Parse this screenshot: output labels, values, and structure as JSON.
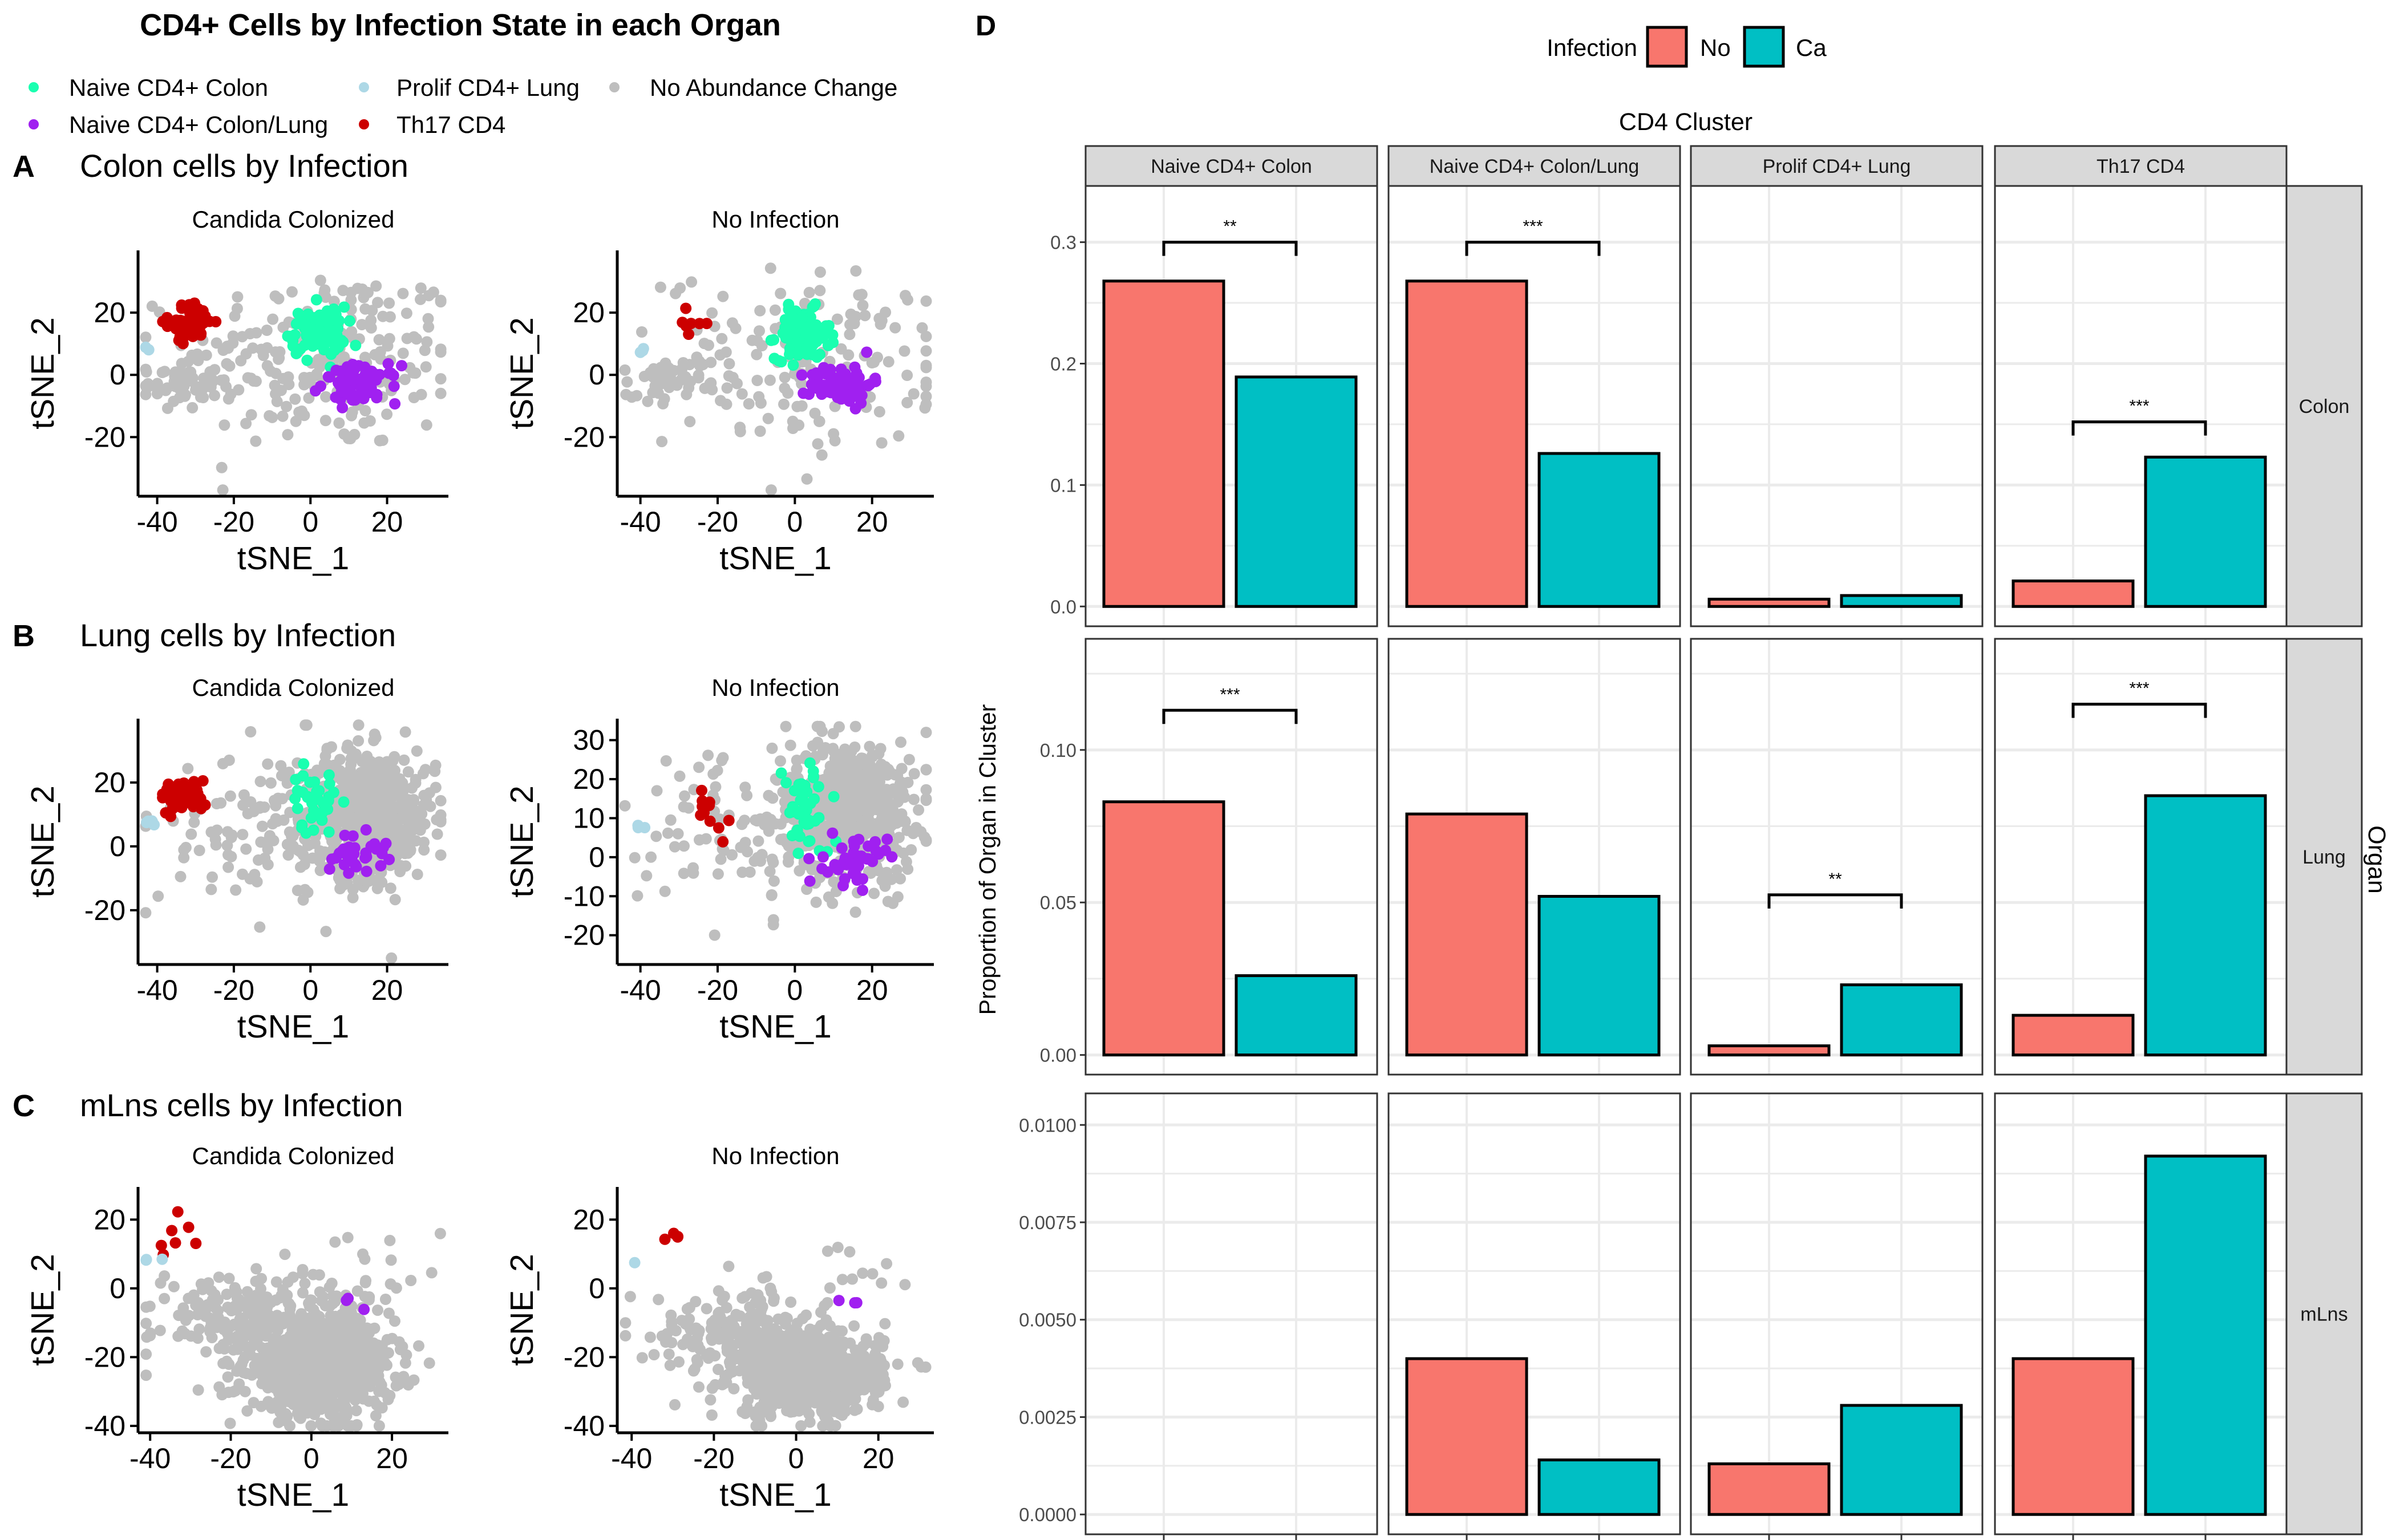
{
  "title": "CD4+ Cells by Infection State in each Organ",
  "legend": {
    "items": [
      {
        "label": "Naive CD4+ Colon",
        "color": "#1AFFB0"
      },
      {
        "label": "Naive CD4+ Colon/Lung",
        "color": "#A020F0"
      },
      {
        "label": "Prolif CD4+ Lung",
        "color": "#ADD8E6"
      },
      {
        "label": "Th17 CD4",
        "color": "#CC0000"
      },
      {
        "label": "No Abundance Change",
        "color": "#BEBEBE"
      }
    ]
  },
  "sections": [
    {
      "letter": "A",
      "heading": "Colon cells by Infection"
    },
    {
      "letter": "B",
      "heading": "Lung cells by Infection"
    },
    {
      "letter": "C",
      "heading": "mLns cells by Infection"
    }
  ],
  "chart_data": [
    {
      "type": "scatter",
      "panel": "A-left",
      "title": "Candida Colonized",
      "xlabel": "tSNE_1",
      "ylabel": "tSNE_2",
      "xticks": [
        "-40",
        "-20",
        "0",
        "20"
      ],
      "yticks": [
        "20",
        "0",
        "-20"
      ],
      "xlim": [
        -45,
        36
      ],
      "ylim": [
        -39,
        40
      ],
      "clusters": [
        {
          "cat": 4,
          "cx": 5,
          "cy": 5,
          "sx": 18,
          "sy": 15,
          "n": 220
        },
        {
          "cat": 4,
          "cx": -34,
          "cy": -3,
          "sx": 5,
          "sy": 4,
          "n": 60
        },
        {
          "cat": 3,
          "cx": -31,
          "cy": 17,
          "sx": 3,
          "sy": 3,
          "n": 55
        },
        {
          "cat": 2,
          "cx": -42,
          "cy": 8,
          "sx": 1,
          "sy": 0.5,
          "n": 2
        },
        {
          "cat": 0,
          "cx": 2,
          "cy": 14,
          "sx": 3.5,
          "sy": 4,
          "n": 90
        },
        {
          "cat": 1,
          "cx": 13,
          "cy": -3,
          "sx": 5,
          "sy": 3,
          "n": 70
        }
      ]
    },
    {
      "type": "scatter",
      "panel": "A-right",
      "title": "No Infection",
      "xlabel": "tSNE_1",
      "ylabel": "tSNE_2",
      "xticks": [
        "-40",
        "-20",
        "0",
        "20"
      ],
      "yticks": [
        "20",
        "0",
        "-20"
      ],
      "xlim": [
        -46,
        36
      ],
      "ylim": [
        -39,
        40
      ],
      "clusters": [
        {
          "cat": 4,
          "cx": 3,
          "cy": 5,
          "sx": 18,
          "sy": 14,
          "n": 160
        },
        {
          "cat": 4,
          "cx": -34,
          "cy": -3,
          "sx": 5,
          "sy": 4,
          "n": 40
        },
        {
          "cat": 3,
          "cx": -27,
          "cy": 17,
          "sx": 3,
          "sy": 3,
          "n": 7
        },
        {
          "cat": 2,
          "cx": -41,
          "cy": 8,
          "sx": 2,
          "sy": 0.5,
          "n": 3
        },
        {
          "cat": 0,
          "cx": 2,
          "cy": 13,
          "sx": 3.5,
          "sy": 4,
          "n": 110
        },
        {
          "cat": 1,
          "cx": 12,
          "cy": -3,
          "sx": 4,
          "sy": 3,
          "n": 90
        }
      ]
    },
    {
      "type": "scatter",
      "panel": "B-left",
      "title": "Candida Colonized",
      "xlabel": "tSNE_1",
      "ylabel": "tSNE_2",
      "xticks": [
        "-40",
        "-20",
        "0",
        "20"
      ],
      "yticks": [
        "20",
        "0",
        "-20"
      ],
      "xlim": [
        -45,
        36
      ],
      "ylim": [
        -37,
        40
      ],
      "clusters": [
        {
          "cat": 4,
          "cx": 15,
          "cy": 10,
          "sx": 9,
          "sy": 10,
          "n": 550
        },
        {
          "cat": 4,
          "cx": -10,
          "cy": 5,
          "sx": 15,
          "sy": 14,
          "n": 120
        },
        {
          "cat": 3,
          "cx": -33,
          "cy": 16,
          "sx": 3,
          "sy": 2.5,
          "n": 60
        },
        {
          "cat": 2,
          "cx": -42,
          "cy": 8,
          "sx": 2,
          "sy": 0.5,
          "n": 5
        },
        {
          "cat": 0,
          "cx": 1,
          "cy": 14,
          "sx": 3,
          "sy": 5,
          "n": 35
        },
        {
          "cat": 1,
          "cx": 12,
          "cy": -2,
          "sx": 4,
          "sy": 3,
          "n": 35
        }
      ]
    },
    {
      "type": "scatter",
      "panel": "B-right",
      "title": "No Infection",
      "xlabel": "tSNE_1",
      "ylabel": "tSNE_2",
      "xticks": [
        "-40",
        "-20",
        "0",
        "20"
      ],
      "yticks": [
        "30",
        "20",
        "10",
        "0",
        "-10",
        "-20"
      ],
      "xlim": [
        -46,
        36
      ],
      "ylim": [
        -27.5,
        35.5
      ],
      "clusters": [
        {
          "cat": 4,
          "cx": 15,
          "cy": 12,
          "sx": 8,
          "sy": 9,
          "n": 550
        },
        {
          "cat": 4,
          "cx": -12,
          "cy": 8,
          "sx": 14,
          "sy": 11,
          "n": 110
        },
        {
          "cat": 3,
          "cx": -23,
          "cy": 12,
          "sx": 4,
          "sy": 5,
          "n": 11
        },
        {
          "cat": 2,
          "cx": -40,
          "cy": 8,
          "sx": 2,
          "sy": 0.5,
          "n": 3
        },
        {
          "cat": 0,
          "cx": 3,
          "cy": 12,
          "sx": 3,
          "sy": 6,
          "n": 45
        },
        {
          "cat": 1,
          "cx": 16,
          "cy": -1,
          "sx": 4,
          "sy": 3,
          "n": 45
        }
      ]
    },
    {
      "type": "scatter",
      "panel": "C-left",
      "title": "Candida Colonized",
      "xlabel": "tSNE_1",
      "ylabel": "tSNE_2",
      "xticks": [
        "-40",
        "-20",
        "0",
        "20"
      ],
      "yticks": [
        "20",
        "0",
        "-20",
        "-40"
      ],
      "xlim": [
        -43,
        34
      ],
      "ylim": [
        -42,
        29.5
      ],
      "clusters": [
        {
          "cat": 4,
          "cx": 2,
          "cy": -23,
          "sx": 9,
          "sy": 7,
          "n": 850
        },
        {
          "cat": 4,
          "cx": -15,
          "cy": -8,
          "sx": 12,
          "sy": 7,
          "n": 200
        },
        {
          "cat": 4,
          "cx": 15,
          "cy": 0,
          "sx": 10,
          "sy": 10,
          "n": 25
        },
        {
          "cat": 3,
          "cx": -33,
          "cy": 15,
          "sx": 3,
          "sy": 3,
          "n": 7
        },
        {
          "cat": 2,
          "cx": -40,
          "cy": 8,
          "sx": 2,
          "sy": 0.8,
          "n": 3
        },
        {
          "cat": 1,
          "cx": 9,
          "cy": -5,
          "sx": 2,
          "sy": 1,
          "n": 3
        }
      ]
    },
    {
      "type": "scatter",
      "panel": "C-right",
      "title": "No Infection",
      "xlabel": "tSNE_1",
      "ylabel": "tSNE_2",
      "xticks": [
        "-40",
        "-20",
        "0",
        "20"
      ],
      "yticks": [
        "20",
        "0",
        "-20",
        "-40"
      ],
      "xlim": [
        -43.5,
        33.5
      ],
      "ylim": [
        -42,
        29.5
      ],
      "clusters": [
        {
          "cat": 4,
          "cx": 3,
          "cy": -25,
          "sx": 9,
          "sy": 6,
          "n": 650
        },
        {
          "cat": 4,
          "cx": -15,
          "cy": -12,
          "sx": 10,
          "sy": 6,
          "n": 170
        },
        {
          "cat": 4,
          "cx": 15,
          "cy": 0,
          "sx": 10,
          "sy": 8,
          "n": 20
        },
        {
          "cat": 3,
          "cx": -28,
          "cy": 16,
          "sx": 2,
          "sy": 1,
          "n": 4
        },
        {
          "cat": 2,
          "cx": -40,
          "cy": 8,
          "sx": 0.5,
          "sy": 0.5,
          "n": 1
        },
        {
          "cat": 1,
          "cx": 12,
          "cy": -5,
          "sx": 2,
          "sy": 1,
          "n": 3
        }
      ]
    },
    {
      "type": "bar",
      "panel_letter": "D",
      "legend_title": "Infection",
      "groups": [
        {
          "label": "No",
          "color": "#F8766D"
        },
        {
          "label": "Ca",
          "color": "#00BFC4"
        }
      ],
      "column_title": "CD4 Cluster",
      "columns": [
        "Naive CD4+ Colon",
        "Naive CD4+ Colon/Lung",
        "Prolif CD4+ Lung",
        "Th17 CD4"
      ],
      "row_title": "Organ",
      "ylabel": "Proportion of Organ in Cluster",
      "rows": [
        {
          "label": "Colon",
          "ylim": [
            0,
            0.33
          ],
          "yticks": [
            "0.0",
            "0.1",
            "0.2",
            "0.3"
          ],
          "tickvals": [
            0,
            0.1,
            0.2,
            0.3
          ],
          "minor": 0.05,
          "values": [
            [
              0.268,
              0.189
            ],
            [
              0.268,
              0.126
            ],
            [
              0.006,
              0.009
            ],
            [
              0.021,
              0.123
            ]
          ],
          "sig": [
            {
              "col": 0,
              "label": "**",
              "y": 0.3
            },
            {
              "col": 1,
              "label": "***",
              "y": 0.3
            },
            {
              "col": 3,
              "label": "***",
              "y": 0.152
            }
          ]
        },
        {
          "label": "Lung",
          "ylim": [
            0,
            0.13
          ],
          "yticks": [
            "0.00",
            "0.05",
            "0.10"
          ],
          "tickvals": [
            0,
            0.05,
            0.1
          ],
          "minor": 0.025,
          "values": [
            [
              0.083,
              0.026
            ],
            [
              0.079,
              0.052
            ],
            [
              0.003,
              0.023
            ],
            [
              0.013,
              0.085
            ]
          ],
          "sig": [
            {
              "col": 0,
              "label": "***",
              "y": 0.113
            },
            {
              "col": 2,
              "label": "**",
              "y": 0.0525
            },
            {
              "col": 3,
              "label": "***",
              "y": 0.115
            }
          ]
        },
        {
          "label": "mLns",
          "ylim": [
            0,
            0.0103
          ],
          "yticks": [
            "0.0000",
            "0.0025",
            "0.0050",
            "0.0075",
            "0.0100"
          ],
          "tickvals": [
            0,
            0.0025,
            0.005,
            0.0075,
            0.01
          ],
          "minor": 0.00125,
          "values": [
            [
              0.0,
              0.0
            ],
            [
              0.004,
              0.0014
            ],
            [
              0.0013,
              0.0028
            ],
            [
              0.004,
              0.0092
            ]
          ],
          "sig": []
        }
      ]
    }
  ]
}
